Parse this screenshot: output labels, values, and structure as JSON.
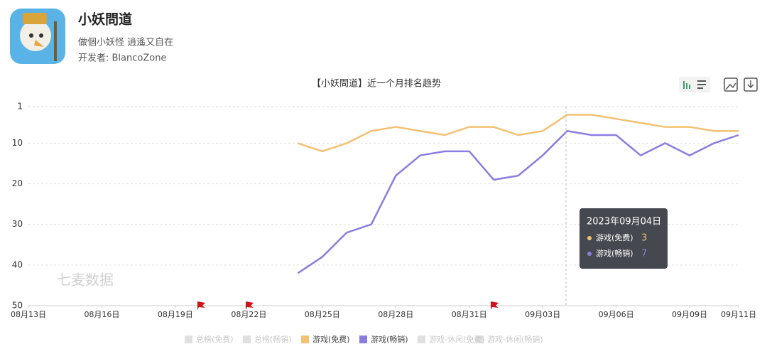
{
  "app": {
    "name": "小妖問道",
    "slogan": "做個小妖怪 逍遙又自在",
    "developer": "开发者: BlancoZone"
  },
  "chart_data": {
    "type": "line",
    "title": "【小妖問道】近一个月排名趋势",
    "watermark": "七麦数据",
    "categories": [
      "08月13日",
      null,
      null,
      "08月16日",
      null,
      null,
      "08月19日",
      null,
      null,
      "08月22日",
      null,
      null,
      "08月25日",
      null,
      null,
      "08月28日",
      null,
      null,
      "08月31日",
      null,
      null,
      "09月03日",
      null,
      null,
      "09月06日",
      null,
      null,
      "09月09日",
      null,
      "09月11日"
    ],
    "ylim": [
      1,
      50
    ],
    "yticks": [
      1,
      10,
      20,
      30,
      40,
      50
    ],
    "y_inverted": true,
    "grid": true,
    "series": [
      {
        "name": "总榜(免费)",
        "color": "#cccccc",
        "hidden": true,
        "values": [
          null,
          null,
          null,
          null,
          null,
          null,
          null,
          null,
          null,
          null,
          null,
          null,
          null,
          null,
          null,
          null,
          null,
          null,
          null,
          null,
          null,
          null,
          null,
          null,
          null,
          null,
          null,
          null,
          null,
          null
        ]
      },
      {
        "name": "总榜(畅销)",
        "color": "#cccccc",
        "hidden": true,
        "values": [
          null,
          null,
          null,
          null,
          null,
          null,
          null,
          null,
          null,
          null,
          null,
          null,
          null,
          null,
          null,
          null,
          null,
          null,
          null,
          null,
          null,
          null,
          null,
          null,
          null,
          null,
          null,
          null,
          null,
          null
        ]
      },
      {
        "name": "游戏(免费)",
        "color": "#f2c172",
        "hidden": false,
        "values": [
          null,
          null,
          null,
          null,
          null,
          null,
          null,
          null,
          null,
          null,
          null,
          10,
          12,
          10,
          7,
          6,
          7,
          8,
          6,
          6,
          8,
          7,
          3,
          3,
          4,
          5,
          6,
          6,
          7,
          7
        ]
      },
      {
        "name": "游戏(畅销)",
        "color": "#8a7de0",
        "hidden": false,
        "values": [
          null,
          null,
          null,
          null,
          null,
          null,
          null,
          null,
          null,
          null,
          null,
          42,
          38,
          32,
          30,
          18,
          13,
          12,
          12,
          19,
          18,
          13,
          7,
          8,
          8,
          13,
          10,
          13,
          10,
          8
        ]
      },
      {
        "name": "游戏-休闲(免费)",
        "color": "#cccccc",
        "hidden": true,
        "values": [
          null,
          null,
          null,
          null,
          null,
          null,
          null,
          null,
          null,
          null,
          null,
          null,
          null,
          null,
          null,
          null,
          null,
          null,
          null,
          null,
          null,
          null,
          null,
          null,
          null,
          null,
          null,
          null,
          null,
          null
        ]
      },
      {
        "name": "游戏-休闲(畅销)",
        "color": "#cccccc",
        "hidden": true,
        "values": [
          null,
          null,
          null,
          null,
          null,
          null,
          null,
          null,
          null,
          null,
          null,
          null,
          null,
          null,
          null,
          null,
          null,
          null,
          null,
          null,
          null,
          null,
          null,
          null,
          null,
          null,
          null,
          null,
          null,
          null
        ]
      }
    ],
    "tooltip": {
      "title": "2023年09月04日",
      "items": [
        {
          "name": "游戏(免费)",
          "value": 3,
          "color": "#f2c172"
        },
        {
          "name": "游戏(畅销)",
          "value": 7,
          "color": "#8a7de0"
        }
      ]
    }
  }
}
